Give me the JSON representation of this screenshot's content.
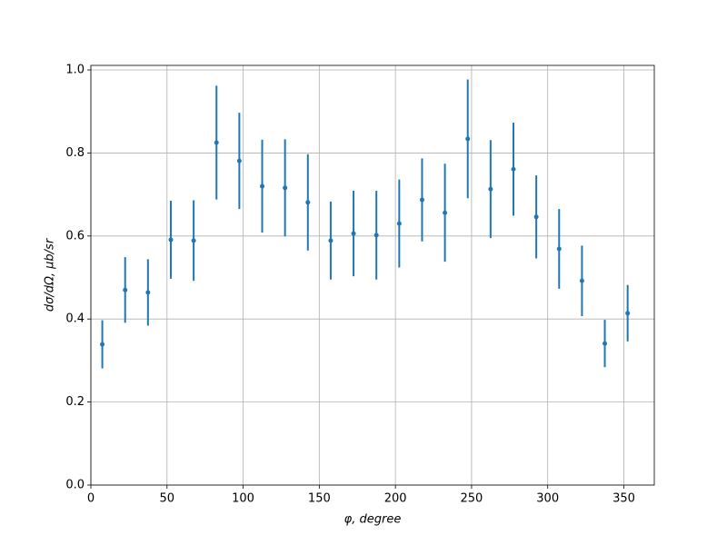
{
  "chart_data": {
    "type": "scatter",
    "xlabel": "φ, degree",
    "ylabel": "dσ/dΩ, μb/sr",
    "xlim": [
      0,
      370
    ],
    "ylim": [
      0,
      1.011
    ],
    "xticks": [
      0,
      50,
      100,
      150,
      200,
      250,
      300,
      350
    ],
    "yticks": [
      {
        "value": 0,
        "label": "0.0"
      },
      0.2,
      0.4,
      0.6,
      0.8,
      {
        "value": 1,
        "label": "1.0"
      }
    ],
    "grid": true,
    "series": [
      {
        "color": "#1f77b4",
        "x": [
          7.5,
          22.5,
          37.5,
          52.5,
          67.5,
          82.5,
          97.5,
          112.5,
          127.5,
          142.5,
          157.5,
          172.5,
          187.5,
          202.5,
          217.5,
          232.5,
          247.5,
          262.5,
          277.5,
          292.5,
          307.5,
          322.5,
          337.5,
          352.5
        ],
        "values": [
          0.339,
          0.47,
          0.464,
          0.591,
          0.589,
          0.825,
          0.781,
          0.72,
          0.716,
          0.681,
          0.589,
          0.606,
          0.602,
          0.63,
          0.687,
          0.656,
          0.834,
          0.713,
          0.761,
          0.646,
          0.569,
          0.492,
          0.341,
          0.414
        ],
        "errors": [
          0.058,
          0.079,
          0.08,
          0.094,
          0.097,
          0.137,
          0.116,
          0.112,
          0.117,
          0.116,
          0.094,
          0.103,
          0.107,
          0.106,
          0.1,
          0.118,
          0.143,
          0.118,
          0.112,
          0.1,
          0.096,
          0.085,
          0.057,
          0.068
        ]
      }
    ]
  }
}
